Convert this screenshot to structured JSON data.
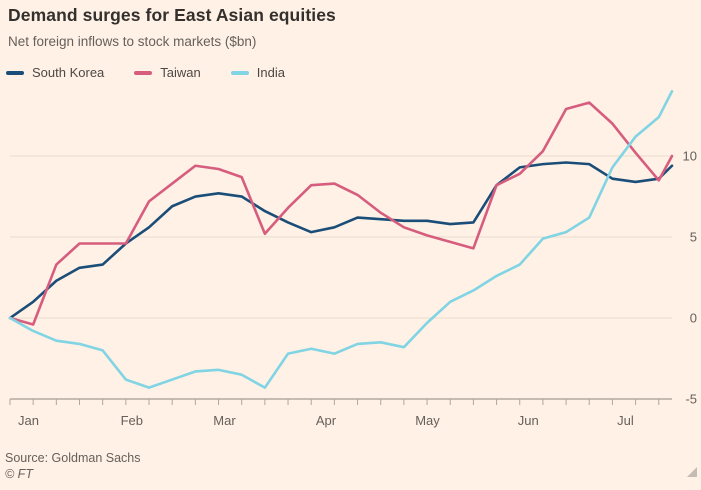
{
  "footer": {
    "source": "Source: Goldman Sachs",
    "copyright": "© FT"
  },
  "colors": {
    "background": "#fff1e5",
    "title_text": "#33302e",
    "muted_text": "#66605c",
    "legend_text": "#4d4845",
    "gridline": "#e8dccb",
    "axis_line": "#8e867e",
    "tick": "#b0a79e",
    "resize_handle": "#c4bcb4"
  },
  "chart_data": {
    "type": "line",
    "title": "Demand surges for East Asian equities",
    "subtitle": "Net foreign inflows to stock markets ($bn)",
    "xlabel": "",
    "ylabel": "$bn",
    "x_unit": "days since Jan 1",
    "x": [
      0,
      7,
      14,
      21,
      28,
      35,
      42,
      49,
      56,
      63,
      70,
      77,
      84,
      91,
      98,
      105,
      112,
      119,
      126,
      133,
      140,
      147,
      154,
      161,
      168,
      175,
      182,
      189,
      196,
      200
    ],
    "month_labels": [
      "Jan",
      "Feb",
      "Mar",
      "Apr",
      "May",
      "Jun",
      "Jul"
    ],
    "month_start_days": [
      0,
      31,
      59,
      90,
      120,
      151,
      181
    ],
    "x_tick_interval_days": 7,
    "series": [
      {
        "name": "South Korea",
        "color": "#1a4e79",
        "values": [
          0,
          1.0,
          2.3,
          3.1,
          3.3,
          4.6,
          5.6,
          6.9,
          7.5,
          7.7,
          7.5,
          6.6,
          5.9,
          5.3,
          5.6,
          6.2,
          6.1,
          6.0,
          6.0,
          5.8,
          5.9,
          8.2,
          9.3,
          9.5,
          9.6,
          9.5,
          8.6,
          8.4,
          8.6,
          9.4
        ]
      },
      {
        "name": "Taiwan",
        "color": "#d65d7e",
        "values": [
          0,
          -0.4,
          3.3,
          4.6,
          4.6,
          4.6,
          7.2,
          8.3,
          9.4,
          9.2,
          8.7,
          5.2,
          6.8,
          8.2,
          8.3,
          7.6,
          6.5,
          5.6,
          5.1,
          4.7,
          4.3,
          8.2,
          8.9,
          10.3,
          12.9,
          13.3,
          12.0,
          10.2,
          8.5,
          10.0
        ]
      },
      {
        "name": "India",
        "color": "#80d4e4",
        "values": [
          0,
          -0.8,
          -1.4,
          -1.6,
          -2.0,
          -3.8,
          -4.3,
          -3.8,
          -3.3,
          -3.2,
          -3.5,
          -4.3,
          -2.2,
          -1.9,
          -2.2,
          -1.6,
          -1.5,
          -1.8,
          -0.3,
          1.0,
          1.7,
          2.6,
          3.3,
          4.9,
          5.3,
          6.2,
          9.3,
          11.2,
          12.4,
          14.0
        ]
      }
    ],
    "ylim": [
      -5,
      14.2
    ],
    "yticks": [
      -5,
      0,
      5,
      10
    ],
    "grid": "horizontal",
    "legend_position": "top"
  }
}
